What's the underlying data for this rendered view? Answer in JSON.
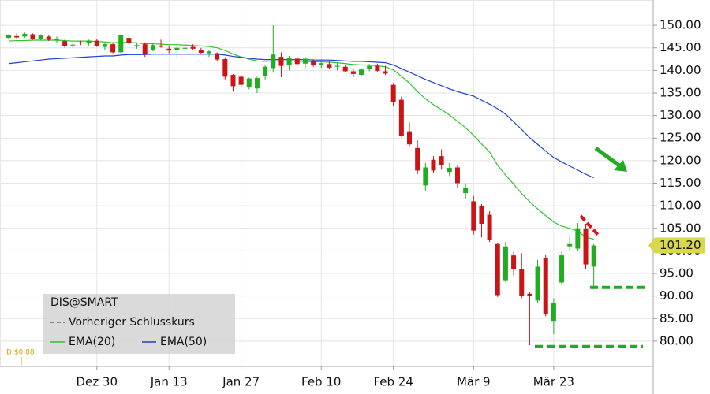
{
  "chart_data": {
    "type": "candlestick",
    "categories": [
      null,
      null,
      null,
      null,
      null,
      null,
      null,
      null,
      null,
      null,
      null,
      "Dez 30",
      null,
      null,
      null,
      null,
      null,
      null,
      null,
      null,
      "Jan 13",
      null,
      null,
      null,
      null,
      null,
      null,
      null,
      null,
      "Jan 27",
      null,
      null,
      null,
      null,
      null,
      null,
      null,
      null,
      null,
      "Feb 10",
      null,
      null,
      null,
      null,
      null,
      null,
      null,
      null,
      "Feb 24",
      null,
      null,
      null,
      null,
      null,
      null,
      null,
      null,
      null,
      "Mär 9",
      null,
      null,
      null,
      null,
      null,
      null,
      null,
      null,
      null,
      "Mär 23",
      null,
      null,
      null,
      null,
      null
    ],
    "open": [
      147.2,
      147.6,
      147.5,
      148.0,
      147.0,
      147.5,
      146.6,
      146.5,
      145.5,
      146.2,
      146.0,
      146.6,
      145.2,
      145.8,
      144.0,
      147.2,
      145.5,
      145.8,
      144.5,
      145.5,
      144.8,
      144.5,
      144.8,
      145.2,
      144.6,
      143.8,
      143.8,
      142.5,
      139.0,
      138.6,
      136.2,
      136.0,
      138.8,
      140.5,
      143.0,
      141.2,
      142.6,
      141.5,
      142.0,
      141.2,
      141.4,
      140.8,
      140.8,
      139.8,
      139.0,
      140.3,
      141.0,
      139.8,
      136.8,
      133.5,
      126.5,
      122.8,
      114.5,
      120.2,
      121.0,
      117.5,
      118.5,
      112.8,
      111.0,
      110.0,
      108.0,
      101.5,
      93.5,
      99.0,
      96.0,
      90.5,
      89.0,
      98.5,
      84.5,
      93.0,
      101.0,
      100.5,
      105.0,
      96.5
    ],
    "high": [
      148.0,
      148.2,
      148.4,
      148.2,
      148.0,
      147.9,
      147.5,
      146.8,
      146.0,
      146.6,
      146.8,
      146.9,
      146.0,
      146.2,
      148.0,
      147.8,
      146.2,
      146.2,
      146.0,
      146.8,
      145.5,
      145.8,
      145.5,
      145.8,
      145.0,
      144.5,
      144.0,
      142.9,
      139.2,
      139.0,
      138.4,
      138.6,
      141.2,
      150.0,
      144.0,
      143.2,
      143.0,
      143.0,
      142.5,
      142.2,
      142.0,
      141.6,
      141.2,
      140.5,
      140.5,
      141.4,
      141.5,
      141.0,
      137.2,
      134.2,
      128.5,
      124.5,
      119.5,
      121.0,
      122.5,
      119.5,
      119.0,
      115.0,
      112.2,
      110.4,
      108.8,
      101.8,
      102.0,
      99.8,
      99.5,
      90.8,
      98.0,
      99.2,
      89.5,
      100.0,
      103.5,
      106.2,
      106.0,
      101.5
    ],
    "low": [
      146.8,
      147.0,
      147.2,
      146.8,
      146.6,
      146.5,
      146.2,
      145.0,
      145.0,
      145.6,
      145.5,
      145.2,
      144.5,
      143.8,
      143.8,
      145.8,
      144.8,
      143.0,
      144.2,
      145.0,
      143.8,
      142.8,
      144.2,
      144.5,
      143.6,
      143.0,
      142.0,
      138.0,
      135.3,
      136.2,
      135.8,
      135.0,
      138.0,
      139.5,
      138.5,
      140.0,
      141.0,
      140.5,
      140.8,
      140.6,
      140.2,
      140.0,
      139.6,
      138.5,
      138.8,
      139.8,
      139.6,
      139.0,
      132.0,
      125.3,
      123.2,
      117.0,
      113.2,
      117.3,
      118.0,
      116.6,
      114.0,
      111.5,
      103.6,
      103.0,
      102.0,
      89.8,
      93.0,
      94.5,
      89.5,
      79.1,
      88.5,
      85.5,
      81.5,
      92.5,
      100.0,
      100.0,
      96.0,
      91.5
    ],
    "close": [
      147.8,
      147.3,
      148.1,
      147.0,
      147.8,
      146.8,
      147.0,
      145.4,
      145.7,
      146.0,
      146.6,
      145.3,
      145.8,
      144.0,
      147.8,
      146.0,
      145.6,
      143.6,
      145.6,
      145.2,
      144.4,
      145.0,
      145.0,
      144.8,
      143.9,
      144.2,
      142.4,
      138.6,
      136.5,
      136.8,
      138.2,
      138.3,
      140.8,
      143.5,
      141.0,
      142.8,
      141.4,
      142.6,
      141.2,
      141.6,
      140.6,
      141.0,
      139.8,
      139.2,
      140.2,
      141.0,
      139.9,
      139.3,
      133.0,
      125.5,
      123.6,
      117.8,
      118.5,
      117.8,
      119.0,
      118.4,
      115.0,
      114.0,
      104.5,
      106.0,
      102.5,
      90.2,
      101.0,
      96.0,
      90.0,
      90.0,
      96.5,
      86.0,
      88.5,
      99.0,
      101.5,
      105.0,
      97.0,
      101.2
    ],
    "up_color": "#1fae1f",
    "down_color": "#cc1414",
    "lines": [
      {
        "name": "EMA(20)",
        "color": "#2ec42e",
        "values": [
          146.5,
          146.6,
          146.6,
          146.7,
          146.7,
          146.7,
          146.7,
          146.6,
          146.5,
          146.5,
          146.5,
          146.4,
          146.3,
          146.1,
          146.2,
          146.2,
          146.1,
          145.9,
          145.9,
          145.8,
          145.7,
          145.7,
          145.6,
          145.5,
          145.4,
          145.3,
          145.0,
          144.4,
          143.6,
          143.0,
          142.5,
          142.1,
          142.0,
          142.1,
          142.0,
          142.1,
          142.0,
          142.0,
          141.9,
          141.9,
          141.8,
          141.7,
          141.5,
          141.3,
          141.2,
          141.2,
          141.0,
          140.8,
          140.1,
          138.7,
          137.2,
          135.3,
          133.7,
          132.4,
          131.3,
          130.1,
          128.7,
          127.3,
          125.6,
          123.7,
          121.9,
          119.0,
          116.8,
          114.8,
          112.7,
          110.9,
          109.3,
          107.8,
          106.4,
          105.5,
          105.0,
          104.4,
          103.0,
          102.6
        ]
      },
      {
        "name": "EMA(50)",
        "color": "#1f3fd8",
        "values": [
          141.5,
          141.7,
          141.9,
          142.1,
          142.3,
          142.5,
          142.6,
          142.7,
          142.8,
          142.9,
          143.0,
          143.1,
          143.2,
          143.2,
          143.4,
          143.5,
          143.5,
          143.5,
          143.6,
          143.6,
          143.6,
          143.6,
          143.6,
          143.6,
          143.6,
          143.6,
          143.6,
          143.4,
          143.1,
          142.9,
          142.7,
          142.5,
          142.4,
          142.4,
          142.4,
          142.4,
          142.4,
          142.4,
          142.3,
          142.3,
          142.3,
          142.2,
          142.1,
          142.0,
          142.0,
          141.9,
          141.8,
          141.7,
          141.2,
          140.4,
          139.6,
          138.8,
          138.0,
          137.3,
          136.6,
          135.9,
          135.3,
          134.8,
          134.3,
          133.4,
          132.5,
          131.5,
          130.3,
          128.6,
          126.9,
          125.1,
          123.6,
          122.1,
          120.7,
          119.7,
          118.8,
          117.9,
          117.0,
          116.2
        ]
      }
    ],
    "legend": {
      "title": "DIS@SMART",
      "items": [
        "Vorheriger Schlusskurs"
      ]
    },
    "dividend_label": "D $0.88",
    "last_price": {
      "value": 101.2,
      "label": "101.20"
    },
    "support_levels": [
      91.9,
      78.8
    ],
    "ylim": [
      74.4,
      155.6
    ],
    "yticks": [
      {
        "value": 80,
        "label": "80.00"
      },
      {
        "value": 85,
        "label": "85.00"
      },
      {
        "value": 90,
        "label": "90.00"
      },
      {
        "value": 95,
        "label": "95.00"
      },
      {
        "value": 100,
        "label": "100.00"
      },
      {
        "value": 105,
        "label": "105.00"
      },
      {
        "value": 110,
        "label": "110.00"
      },
      {
        "value": 115,
        "label": "115.00"
      },
      {
        "value": 120,
        "label": "120.00"
      },
      {
        "value": 125,
        "label": "125.00"
      },
      {
        "value": 130,
        "label": "130.00"
      },
      {
        "value": 135,
        "label": "135.00"
      },
      {
        "value": 140,
        "label": "140.00"
      },
      {
        "value": 145,
        "label": "145.00"
      },
      {
        "value": 150,
        "label": "150.00"
      }
    ],
    "grid": true
  }
}
